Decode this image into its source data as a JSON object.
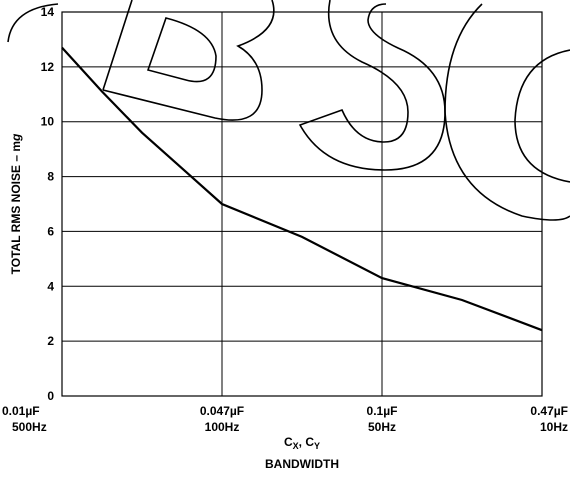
{
  "chart_data": {
    "type": "line",
    "y_label": [
      "TOTAL RMS NOISE – m",
      "g"
    ],
    "x_label": [
      "C",
      "X",
      ", C",
      "Y"
    ],
    "x_label_2": "BANDWIDTH",
    "x": [
      0,
      0.25,
      0.5,
      0.75,
      1,
      1.5,
      2,
      2.5,
      3
    ],
    "series": [
      {
        "color": "#000000",
        "values": [
          12.7,
          11.1,
          9.6,
          8.3,
          7.0,
          5.8,
          4.3,
          3.5,
          2.4
        ]
      }
    ],
    "xlim": [
      0,
      3
    ],
    "xticks": [
      {
        "value": 0,
        "label": "0.01µF"
      },
      {
        "value": 1,
        "label": "0.047µF"
      },
      {
        "value": 2,
        "label": "0.1µF"
      },
      {
        "value": 3,
        "label": "0.47µF"
      }
    ],
    "xticks_bandwidth": [
      "500Hz",
      "100Hz",
      "50Hz",
      "10Hz"
    ],
    "ylim": [
      0,
      14
    ],
    "yticks": [
      0,
      2,
      4,
      6,
      8,
      10,
      12,
      14
    ],
    "grid": true
  }
}
